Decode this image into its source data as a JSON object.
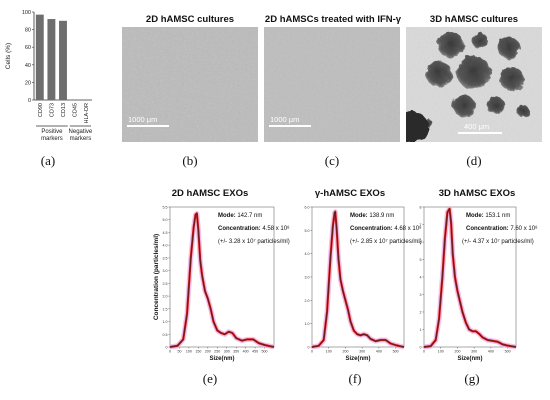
{
  "panel_a": {
    "label": "(a)",
    "chart_data": {
      "type": "bar",
      "categories": [
        "CD90",
        "CD73",
        "CD13",
        "CD45",
        "HLA-DR"
      ],
      "values": [
        97,
        92,
        90,
        0,
        0
      ],
      "ylabel": "Cells (%)",
      "ylim": [
        0,
        100
      ],
      "yticks": [
        "0",
        "20",
        "40",
        "60",
        "80",
        "100"
      ],
      "groups": [
        {
          "label_line1": "Positive",
          "label_line2": "markers"
        },
        {
          "label_line1": "Negative",
          "label_line2": "markers"
        }
      ],
      "bar_color": "#6e6e6e"
    }
  },
  "micrographs": [
    {
      "label": "(b)",
      "title": "2D hAMSC cultures",
      "scale": "1000 μm"
    },
    {
      "label": "(c)",
      "title": "2D hAMSCs treated with IFN-γ",
      "scale": "1000 μm"
    },
    {
      "label": "(d)",
      "title": "3D hAMSC cultures",
      "scale": "400 μm"
    }
  ],
  "exo_panels": [
    {
      "label": "(e)",
      "title": "2D hAMSC EXOs",
      "mode_label": "Mode:",
      "mode_value": "142.7 nm",
      "conc_label": "Concentration:",
      "conc_value": "4.58 x 10⁸",
      "conc_err": "(+/- 3.28 x 10⁷ particles/ml)",
      "chart_data": {
        "type": "line",
        "ylim": [
          0,
          5.5
        ],
        "yticks": [
          "0",
          "0.5",
          "1.0",
          "1.5",
          "2.0",
          "2.5",
          "3.0",
          "3.5",
          "4.0",
          "4.5",
          "5.0",
          "5.5"
        ],
        "xlim": [
          0,
          550
        ],
        "xticks": [
          "0",
          "50",
          "100",
          "150",
          "200",
          "250",
          "300",
          "350",
          "400",
          "450",
          "500"
        ],
        "x": [
          0,
          40,
          70,
          90,
          110,
          125,
          135,
          142,
          150,
          160,
          170,
          185,
          200,
          215,
          230,
          250,
          270,
          290,
          310,
          330,
          350,
          380,
          410,
          440,
          470,
          500,
          530,
          550
        ],
        "y": [
          0,
          0.05,
          0.3,
          1.3,
          3.5,
          4.7,
          5.2,
          5.25,
          4.6,
          3.4,
          2.8,
          2.2,
          1.9,
          1.5,
          1.0,
          0.65,
          0.55,
          0.5,
          0.6,
          0.55,
          0.35,
          0.25,
          0.3,
          0.3,
          0.15,
          0.08,
          0.03,
          0
        ],
        "ylabel": "Concentration (particles/ml)",
        "xlabel": "Size(nm)"
      }
    },
    {
      "label": "(f)",
      "title": "γ-hAMSC EXOs",
      "mode_label": "Mode:",
      "mode_value": "138.9 nm",
      "conc_label": "Concentration:",
      "conc_value": "4.68 x 10⁸",
      "conc_err": "(+/- 2.85 x 10⁷ particles/ml)",
      "chart_data": {
        "type": "line",
        "ylim": [
          0,
          6
        ],
        "yticks": [
          "0",
          "1.0",
          "2.0",
          "3.0",
          "4.0",
          "5.0",
          "6.0"
        ],
        "xlim": [
          0,
          550
        ],
        "xticks": [
          "0",
          "100",
          "200",
          "300",
          "400",
          "500"
        ],
        "x": [
          0,
          40,
          70,
          90,
          110,
          125,
          135,
          139,
          148,
          158,
          170,
          185,
          200,
          215,
          230,
          250,
          270,
          290,
          310,
          330,
          350,
          380,
          410,
          440,
          470,
          500,
          530,
          550
        ],
        "y": [
          0,
          0.05,
          0.3,
          1.5,
          3.8,
          5.2,
          5.75,
          5.8,
          5.0,
          3.8,
          2.9,
          2.4,
          2.0,
          1.6,
          1.1,
          0.7,
          0.55,
          0.5,
          0.55,
          0.5,
          0.35,
          0.25,
          0.3,
          0.3,
          0.15,
          0.08,
          0.03,
          0
        ],
        "xlabel": "Size(nm)"
      }
    },
    {
      "label": "(g)",
      "title": "3D hAMSC EXOs",
      "mode_label": "Mode:",
      "mode_value": "153.1 nm",
      "conc_label": "Concentration:",
      "conc_value": "7.60 x 10⁸",
      "conc_err": "(+/- 4.37 x 10⁷ particles/ml)",
      "chart_data": {
        "type": "line",
        "ylim": [
          0,
          8
        ],
        "yticks": [
          "0",
          "1",
          "2",
          "3",
          "4",
          "5",
          "6",
          "7",
          "8"
        ],
        "xlim": [
          0,
          550
        ],
        "xticks": [
          "0",
          "100",
          "200",
          "300",
          "400",
          "500"
        ],
        "x": [
          0,
          40,
          70,
          90,
          110,
          125,
          140,
          153,
          162,
          172,
          185,
          200,
          215,
          230,
          250,
          270,
          290,
          310,
          330,
          350,
          380,
          410,
          440,
          470,
          500,
          530,
          550
        ],
        "y": [
          0,
          0.05,
          0.4,
          1.6,
          4.0,
          6.2,
          7.7,
          7.9,
          7.1,
          5.3,
          4.0,
          3.2,
          2.6,
          2.0,
          1.4,
          1.0,
          0.9,
          0.9,
          0.75,
          0.55,
          0.4,
          0.35,
          0.3,
          0.15,
          0.08,
          0.03,
          0
        ],
        "xlabel": "Size(nm)"
      }
    }
  ]
}
